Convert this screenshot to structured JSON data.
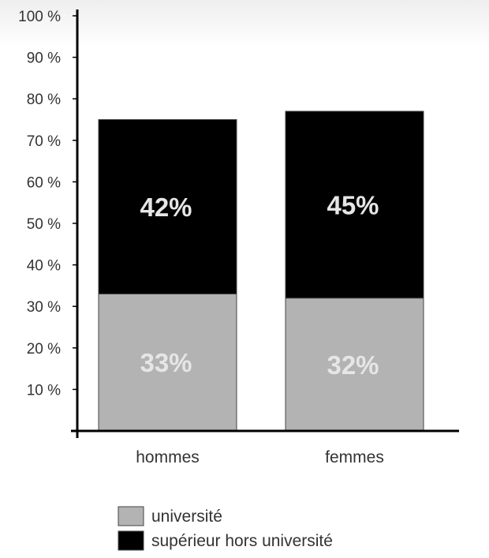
{
  "chart_data": {
    "type": "bar",
    "stacked": true,
    "categories": [
      "hommes",
      "femmes"
    ],
    "series": [
      {
        "name": "université",
        "values": [
          33,
          32
        ],
        "labels": [
          "33%",
          "32%"
        ],
        "color": "#b3b3b3"
      },
      {
        "name": "supérieur hors université",
        "values": [
          42,
          45
        ],
        "labels": [
          "42%",
          "45%"
        ],
        "color": "#000000"
      }
    ],
    "yticks": [
      "10 %",
      "20 %",
      "30 %",
      "40 %",
      "50 %",
      "60 %",
      "70 %",
      "80 %",
      "90 %",
      "100 %"
    ],
    "ylim": [
      0,
      100
    ],
    "legend": "bottom-left",
    "grid": false,
    "title": "",
    "xlabel": "",
    "ylabel": ""
  }
}
